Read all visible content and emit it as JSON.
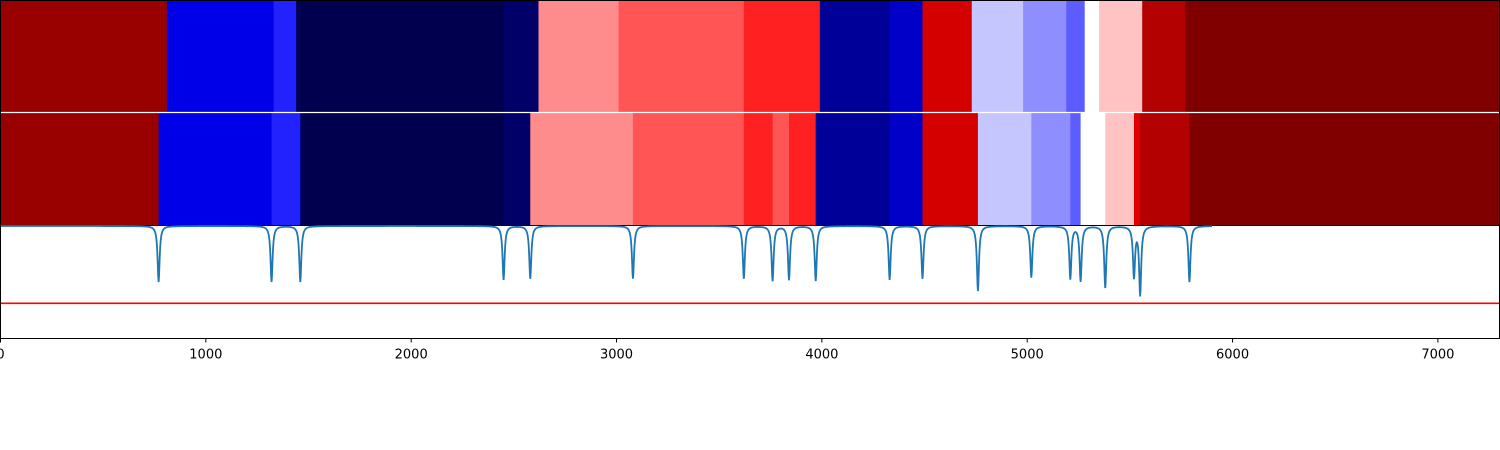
{
  "chart_data": {
    "type": "heatmap",
    "title": "",
    "xlabel": "",
    "ylabel": "",
    "xlim": [
      0,
      7300
    ],
    "x_ticks": [
      0,
      1000,
      2000,
      3000,
      4000,
      5000,
      6000,
      7000
    ],
    "x_tick_labels": [
      "0",
      "1000",
      "2000",
      "3000",
      "4000",
      "5000",
      "6000",
      "7000"
    ],
    "bands": [
      {
        "name": "upper-segmentation",
        "segments": [
          {
            "start": 0,
            "end": 810,
            "color": "#990000"
          },
          {
            "start": 810,
            "end": 1330,
            "color": "#0000e8"
          },
          {
            "start": 1330,
            "end": 1440,
            "color": "#2222ff"
          },
          {
            "start": 1440,
            "end": 2450,
            "color": "#00004e"
          },
          {
            "start": 2450,
            "end": 2620,
            "color": "#000068"
          },
          {
            "start": 2620,
            "end": 3010,
            "color": "#ff8c8c"
          },
          {
            "start": 3010,
            "end": 3620,
            "color": "#ff5555"
          },
          {
            "start": 3620,
            "end": 3990,
            "color": "#ff2121"
          },
          {
            "start": 3990,
            "end": 4330,
            "color": "#000098"
          },
          {
            "start": 4330,
            "end": 4490,
            "color": "#0000c8"
          },
          {
            "start": 4490,
            "end": 4730,
            "color": "#d40000"
          },
          {
            "start": 4730,
            "end": 4980,
            "color": "#c6c6ff"
          },
          {
            "start": 4980,
            "end": 5190,
            "color": "#8e8eff"
          },
          {
            "start": 5190,
            "end": 5280,
            "color": "#5d5dff"
          },
          {
            "start": 5280,
            "end": 5350,
            "color": "#ffffff"
          },
          {
            "start": 5350,
            "end": 5560,
            "color": "#ffc3c3"
          },
          {
            "start": 5560,
            "end": 5770,
            "color": "#b30000"
          },
          {
            "start": 5770,
            "end": 7300,
            "color": "#800000"
          }
        ]
      },
      {
        "name": "lower-segmentation",
        "segments": [
          {
            "start": 0,
            "end": 770,
            "color": "#990000"
          },
          {
            "start": 770,
            "end": 1320,
            "color": "#0000e8"
          },
          {
            "start": 1320,
            "end": 1460,
            "color": "#2222ff"
          },
          {
            "start": 1460,
            "end": 2450,
            "color": "#00004e"
          },
          {
            "start": 2450,
            "end": 2580,
            "color": "#000068"
          },
          {
            "start": 2580,
            "end": 3080,
            "color": "#ff8c8c"
          },
          {
            "start": 3080,
            "end": 3620,
            "color": "#ff5555"
          },
          {
            "start": 3620,
            "end": 3760,
            "color": "#ff2121"
          },
          {
            "start": 3760,
            "end": 3840,
            "color": "#ff5555"
          },
          {
            "start": 3840,
            "end": 3970,
            "color": "#ff2121"
          },
          {
            "start": 3970,
            "end": 4330,
            "color": "#000098"
          },
          {
            "start": 4330,
            "end": 4490,
            "color": "#0000c8"
          },
          {
            "start": 4490,
            "end": 4760,
            "color": "#d40000"
          },
          {
            "start": 4760,
            "end": 5020,
            "color": "#c6c6ff"
          },
          {
            "start": 5020,
            "end": 5210,
            "color": "#8e8eff"
          },
          {
            "start": 5210,
            "end": 5260,
            "color": "#5d5dff"
          },
          {
            "start": 5260,
            "end": 5380,
            "color": "#ffffff"
          },
          {
            "start": 5380,
            "end": 5520,
            "color": "#ffc3c3"
          },
          {
            "start": 5520,
            "end": 5550,
            "color": "#e00000"
          },
          {
            "start": 5550,
            "end": 5790,
            "color": "#b30000"
          },
          {
            "start": 5790,
            "end": 7300,
            "color": "#800000"
          }
        ]
      }
    ],
    "signal": {
      "name": "change-point score",
      "color": "#1f77b4",
      "ylim": [
        0,
        1
      ],
      "baseline": 1.0,
      "dips": [
        {
          "x": 770,
          "depth": 0.5
        },
        {
          "x": 1320,
          "depth": 0.5
        },
        {
          "x": 1460,
          "depth": 0.5
        },
        {
          "x": 2450,
          "depth": 0.48
        },
        {
          "x": 2580,
          "depth": 0.47
        },
        {
          "x": 3080,
          "depth": 0.47
        },
        {
          "x": 3620,
          "depth": 0.47
        },
        {
          "x": 3760,
          "depth": 0.49
        },
        {
          "x": 3840,
          "depth": 0.48
        },
        {
          "x": 3970,
          "depth": 0.49
        },
        {
          "x": 4330,
          "depth": 0.48
        },
        {
          "x": 4490,
          "depth": 0.47
        },
        {
          "x": 4760,
          "depth": 0.58
        },
        {
          "x": 5020,
          "depth": 0.46
        },
        {
          "x": 5210,
          "depth": 0.47
        },
        {
          "x": 5260,
          "depth": 0.49
        },
        {
          "x": 5380,
          "depth": 0.55
        },
        {
          "x": 5520,
          "depth": 0.45
        },
        {
          "x": 5550,
          "depth": 0.61
        },
        {
          "x": 5790,
          "depth": 0.5
        }
      ]
    },
    "threshold": {
      "value": 0.31,
      "color": "#ff0000"
    }
  }
}
